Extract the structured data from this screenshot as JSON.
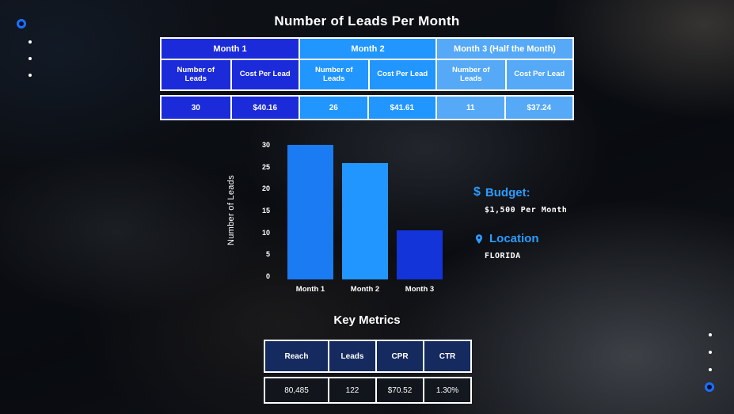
{
  "page_title": "Number of Leads Per Month",
  "leads_table": {
    "groups": [
      {
        "month": "Month 1",
        "subheaders": [
          "Number of Leads",
          "Cost Per Lead"
        ],
        "leads": "30",
        "cost": "$40.16"
      },
      {
        "month": "Month 2",
        "subheaders": [
          "Number of Leads",
          "Cost Per Lead"
        ],
        "leads": "26",
        "cost": "$41.61"
      },
      {
        "month": "Month 3 (Half the Month)",
        "subheaders": [
          "Number of Leads",
          "Cost Per Lead"
        ],
        "leads": "11",
        "cost": "$37.24"
      }
    ]
  },
  "chart_data": {
    "type": "bar",
    "categories": [
      "Month 1",
      "Month 2",
      "Month 3"
    ],
    "values": [
      30,
      26,
      11
    ],
    "title": "",
    "xlabel": "",
    "ylabel": "Number of Leads",
    "ylim": [
      0,
      30
    ],
    "yticks": [
      "30",
      "25",
      "20",
      "15",
      "10",
      "5",
      "0"
    ],
    "bar_colors": [
      "#1b7bf2",
      "#2196ff",
      "#1334d8"
    ],
    "grid": false,
    "legend": "none"
  },
  "budget": {
    "icon": "$",
    "label": "Budget:",
    "value": "$1,500 Per Month"
  },
  "location": {
    "label": "Location",
    "value": "FLORIDA"
  },
  "key_metrics": {
    "title": "Key Metrics",
    "headers": [
      "Reach",
      "Leads",
      "CPR",
      "CTR"
    ],
    "values": [
      "80,485",
      "122",
      "$70.52",
      "1.30%"
    ]
  },
  "colors": {
    "accent_blue": "#2196ff",
    "month1_blue": "#1c2bd9",
    "month2_blue": "#2196ff",
    "month3_blue": "#55a9f7",
    "bar1_blue": "#1b7bf2",
    "bar2_blue": "#2196ff",
    "bar3_blue": "#1334d8",
    "metrics_header_navy": "#152a5e",
    "decor_ring_blue": "#1d6dff"
  }
}
